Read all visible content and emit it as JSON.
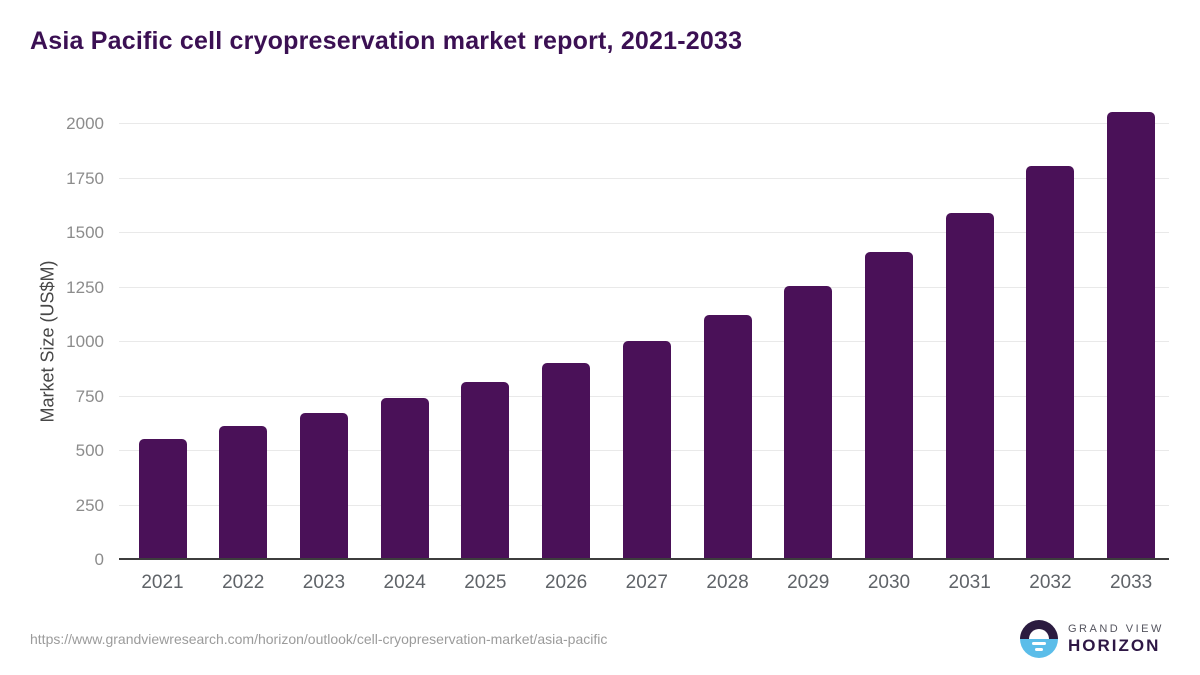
{
  "page": {
    "title": "Asia Pacific cell cryopreservation market report, 2021-2033"
  },
  "chart_data": {
    "type": "bar",
    "title": "Asia Pacific cell cryopreservation market report, 2021-2033",
    "categories": [
      "2021",
      "2022",
      "2023",
      "2024",
      "2025",
      "2026",
      "2027",
      "2028",
      "2029",
      "2030",
      "2031",
      "2032",
      "2033"
    ],
    "values": [
      550,
      610,
      668,
      737,
      812,
      900,
      1002,
      1120,
      1252,
      1408,
      1585,
      1802,
      2050
    ],
    "xlabel": "",
    "ylabel": "Market Size (US$M)",
    "ylim": [
      0,
      2000
    ],
    "yticks": [
      0,
      250,
      500,
      750,
      1000,
      1250,
      1500,
      1750,
      2000
    ],
    "grid": "horizontal",
    "legend": false,
    "bar_color": "#4a1158"
  },
  "footer": {
    "source_url": "https://www.grandviewresearch.com/horizon/outlook/cell-cryopreservation-market/asia-pacific",
    "logo": {
      "line1": "GRAND VIEW",
      "line2": "HORIZON"
    }
  },
  "colors": {
    "bar": "#4a1158",
    "title_text": "#3b1053",
    "axis_line": "#3d3d3d",
    "gridline": "#e9e9e9",
    "ytick_text": "#8c8c8c",
    "xtick_text": "#5f6368",
    "ylabel_text": "#474747",
    "url_text": "#9b9b9b",
    "logo_dark_half": "#2b1b40",
    "logo_blue_half": "#5bbde9",
    "logo_gray_text": "#55555f",
    "logo_purple_text": "#2e1745"
  }
}
